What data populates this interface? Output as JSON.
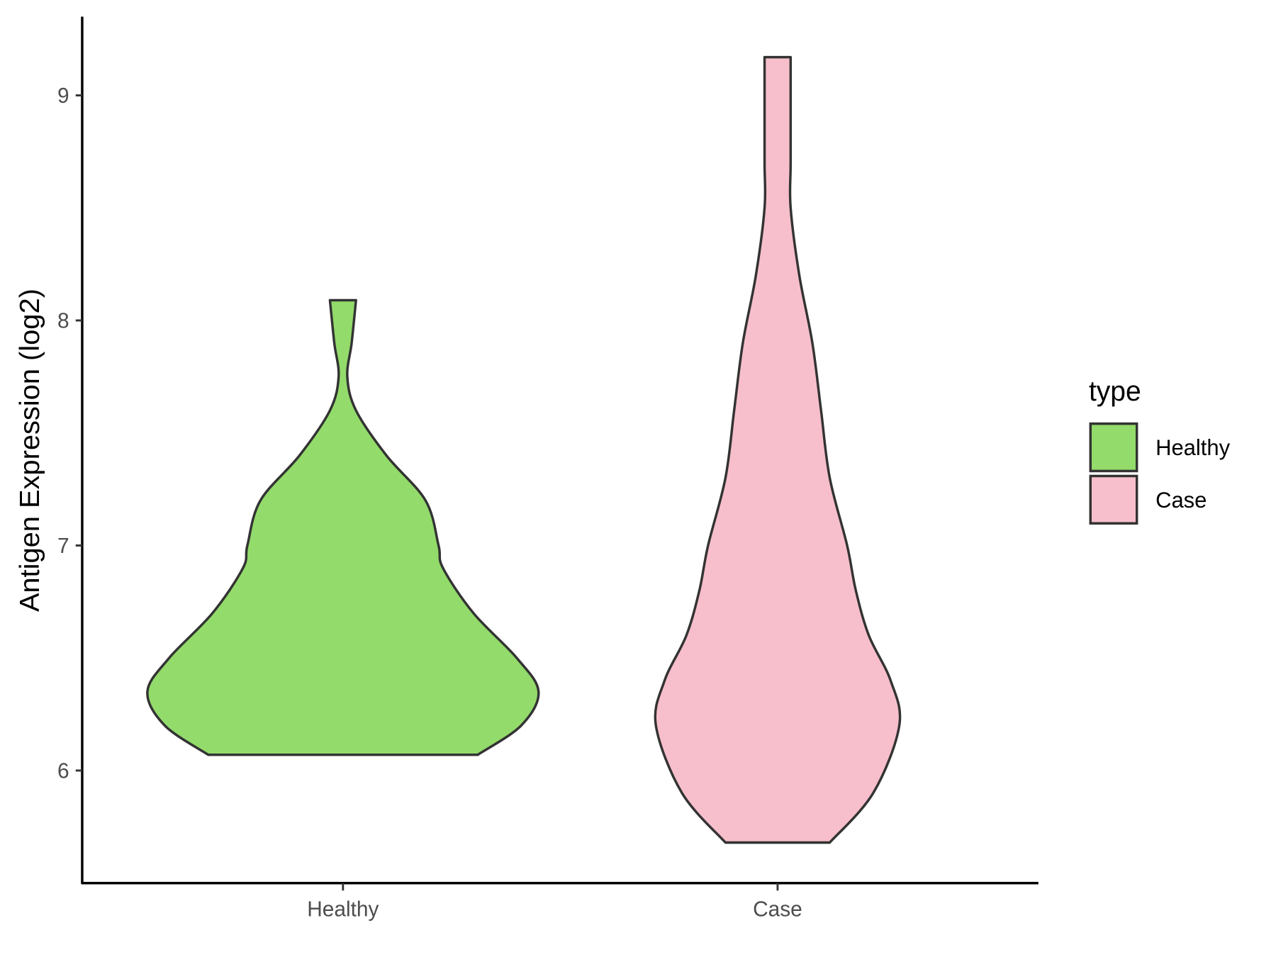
{
  "chart_data": {
    "type": "violin",
    "y_label": "Antigen Expression (log2)",
    "categories": [
      "Healthy",
      "Case"
    ],
    "ylim": [
      5.5,
      9.35
    ],
    "yticks": [
      6,
      7,
      8,
      9
    ],
    "legend_title": "type",
    "legend_position": "right",
    "series": [
      {
        "name": "Healthy",
        "color": "#93DB6B",
        "y": [
          6.07,
          6.2,
          6.35,
          6.5,
          6.7,
          6.9,
          7.0,
          7.2,
          7.4,
          7.6,
          7.75,
          7.9,
          8.09
        ],
        "half_width": [
          0.31,
          0.41,
          0.45,
          0.4,
          0.3,
          0.23,
          0.22,
          0.19,
          0.1,
          0.03,
          0.01,
          0.02,
          0.03
        ]
      },
      {
        "name": "Case",
        "color": "#F7BFCB",
        "y": [
          5.68,
          5.9,
          6.2,
          6.4,
          6.6,
          6.8,
          7.0,
          7.3,
          7.6,
          7.9,
          8.2,
          8.5,
          8.7,
          9.0,
          9.17
        ],
        "half_width": [
          0.12,
          0.22,
          0.28,
          0.26,
          0.21,
          0.18,
          0.16,
          0.12,
          0.1,
          0.08,
          0.05,
          0.03,
          0.03,
          0.03,
          0.03
        ]
      }
    ]
  }
}
